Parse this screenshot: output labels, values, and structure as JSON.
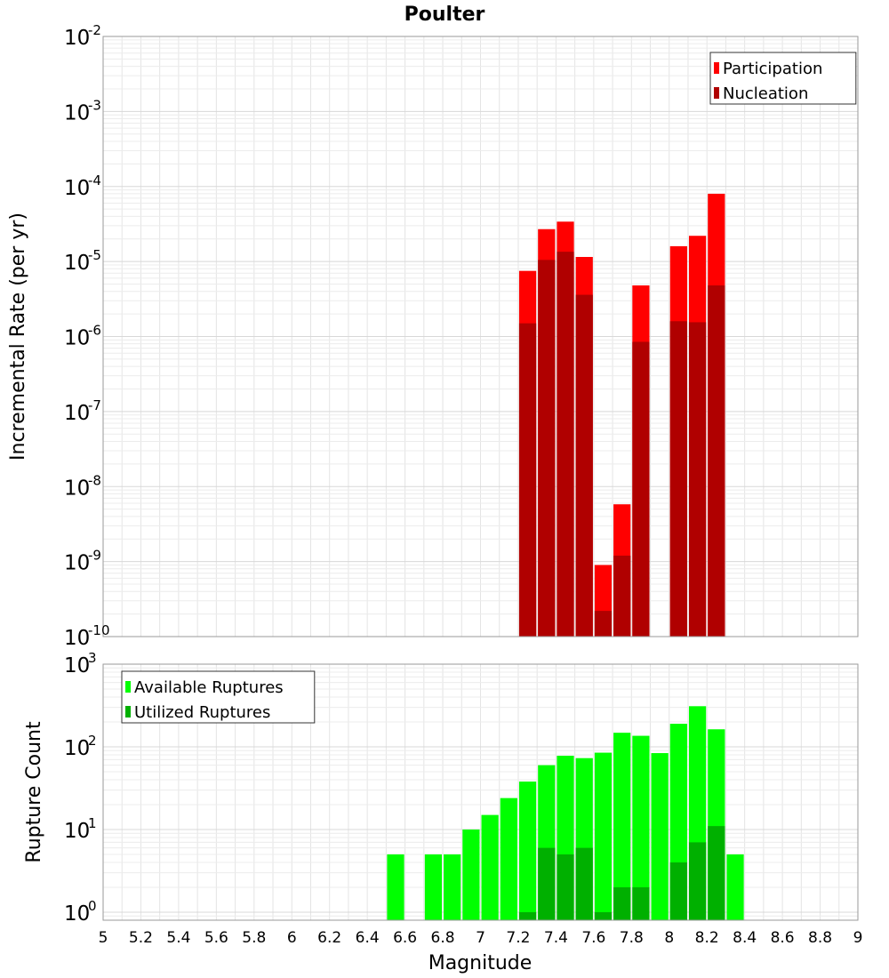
{
  "figure": {
    "title": "Poulter",
    "xlabel": "Magnitude"
  },
  "chart_data": [
    {
      "type": "bar",
      "ylabel": "Incremental Rate (per yr)",
      "yscale": "log",
      "ylim": [
        1e-10,
        0.01
      ],
      "xlim": [
        5,
        9
      ],
      "grid": true,
      "legend_position": "top-right",
      "bar_overlay": true,
      "x": [
        7.25,
        7.35,
        7.45,
        7.55,
        7.65,
        7.75,
        7.85,
        8.05,
        8.15,
        8.25
      ],
      "series": [
        {
          "name": "Participation",
          "color": "#ff0000",
          "values": [
            7.5e-06,
            2.7e-05,
            3.4e-05,
            1.15e-05,
            9e-10,
            5.8e-09,
            4.8e-06,
            1.6e-05,
            2.2e-05,
            8e-05
          ]
        },
        {
          "name": "Nucleation",
          "color": "#b00000",
          "values": [
            1.5e-06,
            1.05e-05,
            1.35e-05,
            3.6e-06,
            2.2e-10,
            1.2e-09,
            8.5e-07,
            1.6e-06,
            1.55e-06,
            4.8e-06
          ]
        }
      ],
      "yticks": [
        {
          "base": "10",
          "exp": "-2"
        },
        {
          "base": "10",
          "exp": "-3"
        },
        {
          "base": "10",
          "exp": "-4"
        },
        {
          "base": "10",
          "exp": "-5"
        },
        {
          "base": "10",
          "exp": "-6"
        },
        {
          "base": "10",
          "exp": "-7"
        },
        {
          "base": "10",
          "exp": "-8"
        },
        {
          "base": "10",
          "exp": "-9"
        },
        {
          "base": "10",
          "exp": "-10"
        }
      ]
    },
    {
      "type": "bar",
      "ylabel": "Rupture Count",
      "yscale": "log",
      "ylim": [
        0.8,
        1000
      ],
      "xlim": [
        5,
        9
      ],
      "grid": true,
      "legend_position": "top-left",
      "bar_overlay": true,
      "x": [
        6.55,
        6.75,
        6.85,
        6.95,
        7.05,
        7.15,
        7.25,
        7.35,
        7.45,
        7.55,
        7.65,
        7.75,
        7.85,
        7.95,
        8.05,
        8.15,
        8.25,
        8.35
      ],
      "series": [
        {
          "name": "Available Ruptures",
          "color": "#00ff00",
          "values": [
            5,
            5,
            5,
            10,
            15,
            24,
            38,
            60,
            78,
            73,
            85,
            148,
            136,
            84,
            190,
            310,
            163,
            5
          ]
        },
        {
          "name": "Utilized Ruptures",
          "color": "#00b000",
          "values": [
            0,
            0,
            0,
            0,
            0,
            0,
            1,
            6,
            5,
            6,
            1,
            2,
            2,
            0,
            4,
            7,
            11,
            0
          ]
        }
      ],
      "yticks": [
        {
          "base": "10",
          "exp": "3"
        },
        {
          "base": "10",
          "exp": "2"
        },
        {
          "base": "10",
          "exp": "1"
        },
        {
          "base": "10",
          "exp": "0"
        }
      ],
      "xticks": [
        "5",
        "5.2",
        "5.4",
        "5.6",
        "5.8",
        "6",
        "6.2",
        "6.4",
        "6.6",
        "6.8",
        "7",
        "7.2",
        "7.4",
        "7.6",
        "7.8",
        "8",
        "8.2",
        "8.4",
        "8.6",
        "8.8",
        "9"
      ]
    }
  ]
}
